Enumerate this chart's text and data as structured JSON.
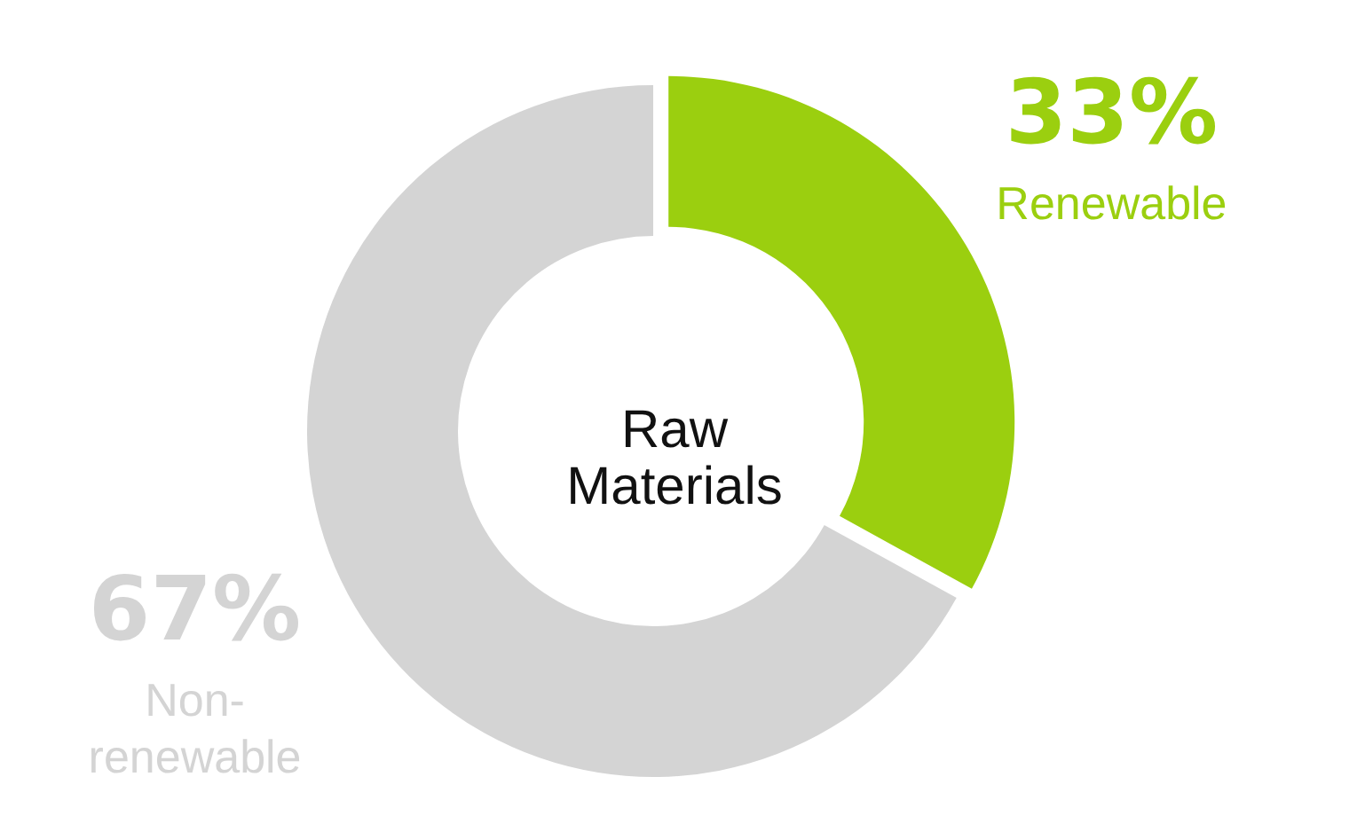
{
  "chart_data": {
    "type": "donut",
    "title": "Raw Materials",
    "categories": [
      "Renewable",
      "Non-renewable"
    ],
    "values": [
      33,
      67
    ],
    "value_labels": [
      "33%",
      "67%"
    ],
    "colors": [
      "#9bcf0f",
      "#d4d4d4"
    ]
  }
}
